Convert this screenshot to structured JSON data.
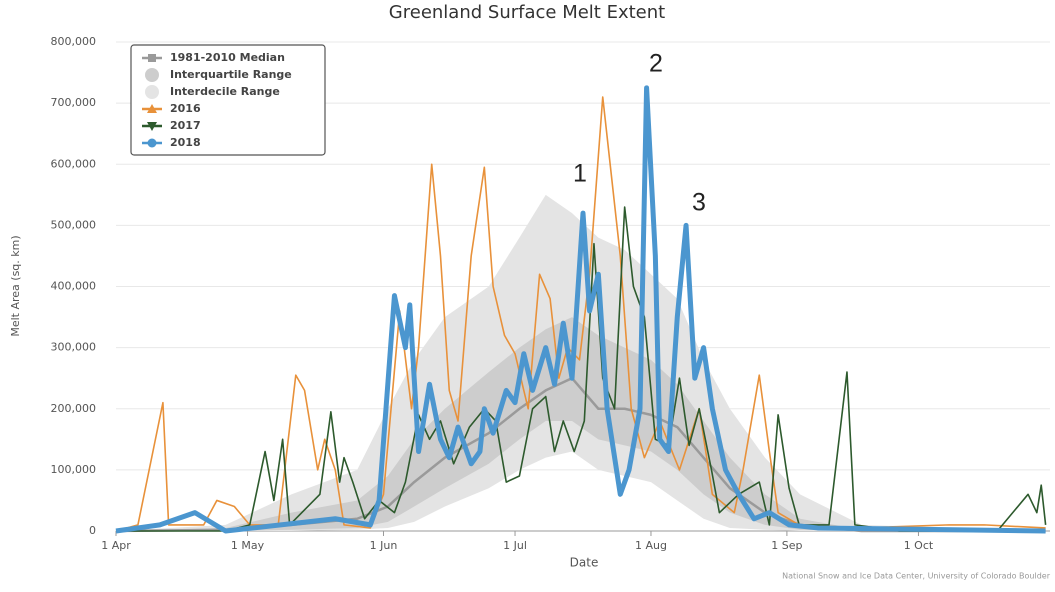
{
  "chart_data": {
    "type": "line",
    "title": "Greenland Surface Melt Extent",
    "x_label": "Date",
    "y_label": "Melt Area (sq. km)",
    "source": "National Snow and Ice Data Center, University of Colorado Boulder",
    "annotations": [
      "1",
      "2",
      "3"
    ],
    "xlim": [
      0,
      213
    ],
    "xticks": [
      {
        "value": 0,
        "label": "1 Apr"
      },
      {
        "value": 30,
        "label": "1 May"
      },
      {
        "value": 61,
        "label": "1 Jun"
      },
      {
        "value": 91,
        "label": "1 Jul"
      },
      {
        "value": 122,
        "label": "1 Aug"
      },
      {
        "value": 153,
        "label": "1 Sep"
      },
      {
        "value": 183,
        "label": "1 Oct"
      }
    ],
    "ylim": [
      0,
      800000
    ],
    "yticks": [
      0,
      {
        "value": 100000,
        "label": "100,000"
      },
      {
        "value": 200000,
        "label": "200,000"
      },
      {
        "value": 300000,
        "label": "300,000"
      },
      {
        "value": 400000,
        "label": "400,000"
      },
      {
        "value": 500000,
        "label": "500,000"
      },
      {
        "value": 600000,
        "label": "600,000"
      },
      {
        "value": 700000,
        "label": "700,000"
      },
      {
        "value": 800000,
        "label": "800,000"
      }
    ],
    "grid": true,
    "bands": [
      {
        "name": "Interdecile Range",
        "color": "#e4e4e4",
        "x": [
          0,
          25,
          40,
          55,
          62,
          68,
          75,
          85,
          92,
          98,
          104,
          110,
          116,
          122,
          128,
          134,
          140,
          148,
          156,
          170,
          212
        ],
        "lower": [
          0,
          0,
          0,
          2000,
          5000,
          15000,
          40000,
          70000,
          100000,
          120000,
          130000,
          100000,
          90000,
          80000,
          50000,
          20000,
          5000,
          2000,
          0,
          0,
          0
        ],
        "upper": [
          0,
          10000,
          60000,
          100000,
          200000,
          280000,
          350000,
          400000,
          480000,
          550000,
          520000,
          480000,
          460000,
          420000,
          380000,
          280000,
          200000,
          120000,
          60000,
          10000,
          0
        ]
      },
      {
        "name": "Interquartile Range",
        "color": "#cdcdcd",
        "x": [
          0,
          25,
          40,
          55,
          62,
          68,
          75,
          85,
          92,
          98,
          104,
          110,
          116,
          122,
          128,
          134,
          140,
          148,
          156,
          170,
          212
        ],
        "lower": [
          0,
          0,
          2000,
          5000,
          15000,
          40000,
          70000,
          110000,
          150000,
          180000,
          180000,
          150000,
          140000,
          130000,
          100000,
          60000,
          30000,
          10000,
          2000,
          0,
          0
        ],
        "upper": [
          0,
          5000,
          30000,
          50000,
          90000,
          150000,
          200000,
          260000,
          300000,
          330000,
          350000,
          320000,
          300000,
          280000,
          240000,
          180000,
          120000,
          60000,
          20000,
          2000,
          0
        ]
      }
    ],
    "series": [
      {
        "name": "1981-2010 Median",
        "color": "#9a9a9a",
        "x": [
          0,
          25,
          40,
          55,
          62,
          68,
          75,
          85,
          92,
          98,
          104,
          110,
          116,
          122,
          128,
          134,
          140,
          148,
          156,
          170,
          212
        ],
        "values": [
          0,
          2000,
          10000,
          20000,
          40000,
          80000,
          120000,
          160000,
          200000,
          230000,
          250000,
          200000,
          200000,
          190000,
          170000,
          120000,
          70000,
          30000,
          10000,
          0,
          0
        ]
      },
      {
        "name": "2016",
        "color": "#e8913a",
        "x": [
          0,
          5,
          10.7,
          12,
          20,
          23,
          27,
          30.5,
          37,
          41,
          43,
          46,
          47.6,
          50,
          52,
          58,
          61,
          64.7,
          67.4,
          69,
          72,
          74,
          76,
          78,
          81,
          84,
          86,
          88.6,
          91,
          94,
          96.6,
          99,
          101,
          103,
          105.7,
          108,
          111,
          113,
          115,
          117.5,
          120.5,
          124,
          128.5,
          133,
          136,
          141,
          143,
          146.7,
          149,
          151,
          155.8,
          170,
          190,
          198,
          212
        ],
        "values": [
          0,
          10000,
          210000,
          10000,
          10000,
          50000,
          40000,
          10000,
          10000,
          255000,
          230000,
          100000,
          150000,
          100000,
          10000,
          5000,
          60000,
          360000,
          200000,
          300000,
          600000,
          450000,
          230000,
          180000,
          450000,
          595000,
          400000,
          320000,
          290000,
          200000,
          420000,
          380000,
          250000,
          300000,
          280000,
          420000,
          710000,
          580000,
          450000,
          200000,
          120000,
          180000,
          100000,
          200000,
          60000,
          30000,
          100000,
          255000,
          130000,
          30000,
          10000,
          5000,
          10000,
          10000,
          5000
        ]
      },
      {
        "name": "2017",
        "color": "#2d5a2d",
        "x": [
          0,
          25,
          30.5,
          34,
          36,
          38,
          39.6,
          46.5,
          49,
          51,
          52,
          54,
          56.7,
          60,
          63.5,
          66,
          69,
          71.5,
          74,
          77,
          80.6,
          84,
          86.6,
          89,
          92,
          95,
          98,
          100,
          102,
          104.5,
          106.8,
          109,
          111,
          113.7,
          116,
          118,
          120.5,
          123,
          126,
          128.5,
          130.7,
          133,
          135.8,
          137.6,
          142,
          146.7,
          149,
          151,
          153.5,
          155.8,
          162.6,
          166.7,
          168.5,
          178.6,
          201,
          208,
          210,
          211,
          212
        ],
        "values": [
          0,
          0,
          10000,
          130000,
          50000,
          150000,
          10000,
          60000,
          195000,
          80000,
          120000,
          80000,
          20000,
          50000,
          30000,
          80000,
          190000,
          150000,
          180000,
          110000,
          170000,
          200000,
          180000,
          80000,
          90000,
          200000,
          220000,
          130000,
          180000,
          130000,
          180000,
          470000,
          250000,
          200000,
          530000,
          400000,
          350000,
          150000,
          140000,
          250000,
          140000,
          200000,
          100000,
          30000,
          60000,
          80000,
          10000,
          190000,
          70000,
          10000,
          10000,
          260000,
          10000,
          0,
          0,
          60000,
          30000,
          75000,
          10000
        ]
      },
      {
        "name": "2018",
        "color": "#4b96cf",
        "x": [
          0,
          10,
          18,
          25,
          50,
          58,
          60,
          63.5,
          66,
          67,
          69,
          71.5,
          74,
          76,
          78,
          81,
          83,
          84,
          86,
          89,
          91,
          93,
          95,
          98,
          100,
          102,
          104,
          106.5,
          108,
          110,
          112,
          115,
          117,
          119.5,
          121,
          123,
          124,
          126,
          128,
          130,
          132,
          134,
          136,
          139,
          142,
          145.5,
          149,
          153.5,
          160,
          212
        ],
        "values": [
          0,
          10000,
          30000,
          0,
          20000,
          10000,
          50000,
          385000,
          300000,
          370000,
          130000,
          240000,
          150000,
          120000,
          170000,
          110000,
          130000,
          200000,
          160000,
          230000,
          210000,
          290000,
          230000,
          300000,
          240000,
          340000,
          250000,
          520000,
          360000,
          420000,
          200000,
          60000,
          100000,
          200000,
          725000,
          450000,
          150000,
          130000,
          350000,
          500000,
          250000,
          300000,
          200000,
          100000,
          60000,
          20000,
          30000,
          10000,
          5000,
          0
        ]
      }
    ]
  }
}
